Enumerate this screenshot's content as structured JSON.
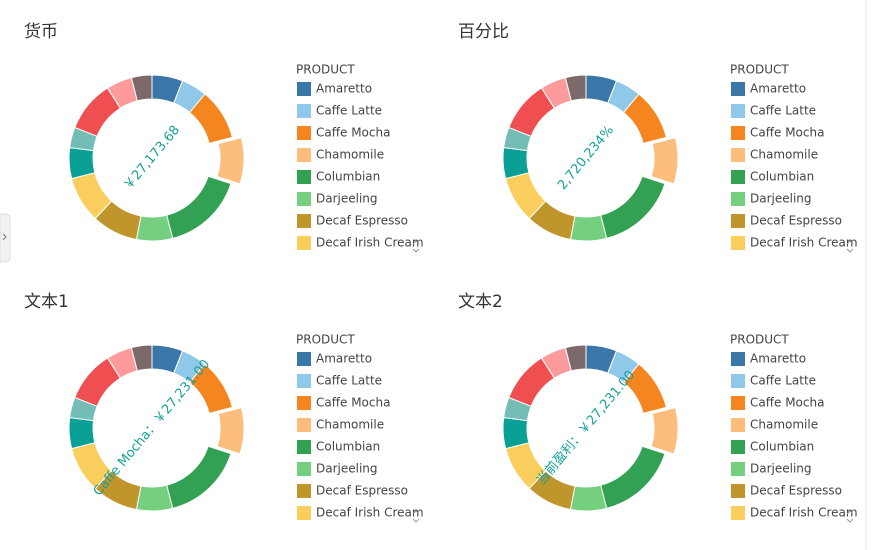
{
  "charts": [
    {
      "type": "pie",
      "title": "货币",
      "center_label": "￥27,173.68",
      "legend_title": "PRODUCT",
      "exploded_index": 3,
      "categories": [
        "Amaretto",
        "Caffe Latte",
        "Caffe Mocha",
        "Chamomile",
        "Columbian",
        "Darjeeling",
        "Decaf Espresso",
        "Decaf Irish Cream",
        null,
        null,
        null,
        null,
        null
      ],
      "values": [
        6,
        5,
        10,
        9,
        16,
        7,
        9,
        9,
        6,
        4,
        10,
        5,
        4
      ],
      "colors": [
        "#3a76a8",
        "#8fc8e8",
        "#f5861f",
        "#fdbd7d",
        "#32a154",
        "#74d07f",
        "#bf952c",
        "#f9ce5c",
        "#0aa096",
        "#73bdb6",
        "#ef4f51",
        "#fd9a9b",
        "#7c6a6a"
      ]
    },
    {
      "type": "pie",
      "title": "百分比",
      "center_label": "2,720,234%",
      "legend_title": "PRODUCT",
      "exploded_index": 3,
      "categories": [
        "Amaretto",
        "Caffe Latte",
        "Caffe Mocha",
        "Chamomile",
        "Columbian",
        "Darjeeling",
        "Decaf Espresso",
        "Decaf Irish Cream",
        null,
        null,
        null,
        null,
        null
      ],
      "values": [
        6,
        5,
        10,
        9,
        16,
        7,
        9,
        9,
        6,
        4,
        10,
        5,
        4
      ],
      "colors": [
        "#3a76a8",
        "#8fc8e8",
        "#f5861f",
        "#fdbd7d",
        "#32a154",
        "#74d07f",
        "#bf952c",
        "#f9ce5c",
        "#0aa096",
        "#73bdb6",
        "#ef4f51",
        "#fd9a9b",
        "#7c6a6a"
      ]
    },
    {
      "type": "pie",
      "title": "文本1",
      "center_label": "Caffe Mocha：￥27,231.00",
      "legend_title": "PRODUCT",
      "exploded_index": 3,
      "categories": [
        "Amaretto",
        "Caffe Latte",
        "Caffe Mocha",
        "Chamomile",
        "Columbian",
        "Darjeeling",
        "Decaf Espresso",
        "Decaf Irish Cream",
        null,
        null,
        null,
        null,
        null
      ],
      "values": [
        6,
        5,
        10,
        9,
        16,
        7,
        9,
        9,
        6,
        4,
        10,
        5,
        4
      ],
      "colors": [
        "#3a76a8",
        "#8fc8e8",
        "#f5861f",
        "#fdbd7d",
        "#32a154",
        "#74d07f",
        "#bf952c",
        "#f9ce5c",
        "#0aa096",
        "#73bdb6",
        "#ef4f51",
        "#fd9a9b",
        "#7c6a6a"
      ]
    },
    {
      "type": "pie",
      "title": "文本2",
      "center_label": "当前盈利：￥27,231.00",
      "legend_title": "PRODUCT",
      "exploded_index": 3,
      "categories": [
        "Amaretto",
        "Caffe Latte",
        "Caffe Mocha",
        "Chamomile",
        "Columbian",
        "Darjeeling",
        "Decaf Espresso",
        "Decaf Irish Cream",
        null,
        null,
        null,
        null,
        null
      ],
      "values": [
        6,
        5,
        10,
        9,
        16,
        7,
        9,
        9,
        6,
        4,
        10,
        5,
        4
      ],
      "colors": [
        "#3a76a8",
        "#8fc8e8",
        "#f5861f",
        "#fdbd7d",
        "#32a154",
        "#74d07f",
        "#bf952c",
        "#f9ce5c",
        "#0aa096",
        "#73bdb6",
        "#ef4f51",
        "#fd9a9b",
        "#7c6a6a"
      ]
    }
  ]
}
